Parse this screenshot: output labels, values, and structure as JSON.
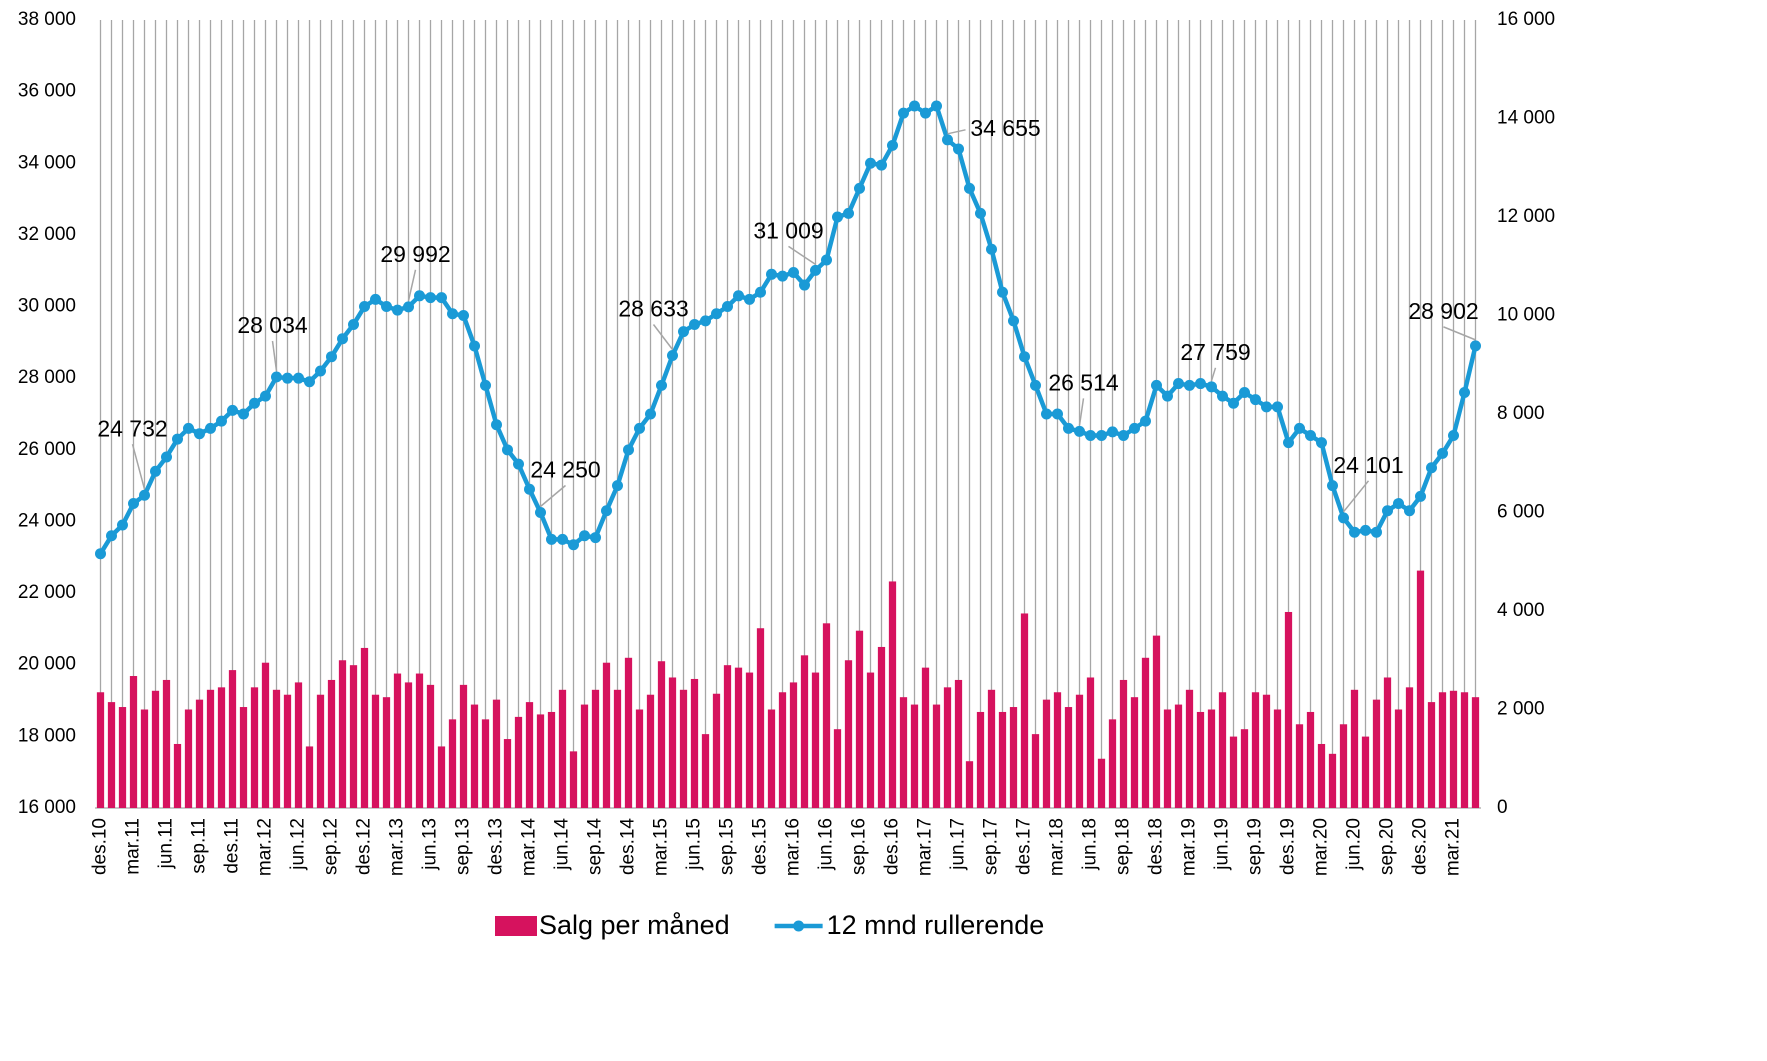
{
  "chart_data": {
    "type": "bar_line",
    "categories": [
      "des.10",
      null,
      null,
      "mar.11",
      null,
      null,
      "jun.11",
      null,
      null,
      "sep.11",
      null,
      null,
      "des.11",
      null,
      null,
      "mar.12",
      null,
      null,
      "jun.12",
      null,
      null,
      "sep.12",
      null,
      null,
      "des.12",
      null,
      null,
      "mar.13",
      null,
      null,
      "jun.13",
      null,
      null,
      "sep.13",
      null,
      null,
      "des.13",
      null,
      null,
      "mar.14",
      null,
      null,
      "jun.14",
      null,
      null,
      "sep.14",
      null,
      null,
      "des.14",
      null,
      null,
      "mar.15",
      null,
      null,
      "jun.15",
      null,
      null,
      "sep.15",
      null,
      null,
      "des.15",
      null,
      null,
      "mar.16",
      null,
      null,
      "jun.16",
      null,
      null,
      "sep.16",
      null,
      null,
      "des.16",
      null,
      null,
      "mar.17",
      null,
      null,
      "jun.17",
      null,
      null,
      "sep.17",
      null,
      null,
      "des.17",
      null,
      null,
      "mar.18",
      null,
      null,
      "jun.18",
      null,
      null,
      "sep.18",
      null,
      null,
      "des.18",
      null,
      null,
      "mar.19",
      null,
      null,
      "jun.19",
      null,
      null,
      "sep.19",
      null,
      null,
      "des.19",
      null,
      null,
      "mar.20",
      null,
      null,
      "jun.20",
      null,
      null,
      "sep.20",
      null,
      null,
      "des.20",
      null,
      null,
      "mar.21",
      null,
      null
    ],
    "series": [
      {
        "name": "Salg per måned",
        "color": "#d6125e",
        "axis": "y2",
        "type": "bar",
        "values": [
          2350,
          2150,
          2050,
          2680,
          2000,
          2380,
          2600,
          1300,
          2000,
          2200,
          2400,
          2450,
          2800,
          2050,
          2450,
          2950,
          2400,
          2300,
          2550,
          1250,
          2300,
          2600,
          3000,
          2900,
          3250,
          2300,
          2250,
          2730,
          2550,
          2730,
          2500,
          1250,
          1800,
          2500,
          2100,
          1800,
          2200,
          1400,
          1850,
          2150,
          1900,
          1950,
          2400,
          1150,
          2100,
          2400,
          2950,
          2400,
          3050,
          2000,
          2300,
          2980,
          2650,
          2400,
          2620,
          1500,
          2320,
          2900,
          2850,
          2750,
          3650,
          2000,
          2350,
          2550,
          3100,
          2750,
          3750,
          1600,
          3000,
          3600,
          2750,
          3270,
          4600,
          2250,
          2100,
          2850,
          2100,
          2450,
          2600,
          950,
          1950,
          2400,
          1950,
          2050,
          3950,
          1500,
          2200,
          2350,
          2050,
          2300,
          2650,
          1000,
          1800,
          2600,
          2250,
          3050,
          3500,
          2000,
          2100,
          2400,
          1950,
          2000,
          2350,
          1450,
          1600,
          2350,
          2300,
          2000,
          3980,
          1700,
          1950,
          1300,
          1100,
          1700,
          2400,
          1450,
          2200,
          2650,
          2000,
          2450,
          4820,
          2150,
          2350,
          2380,
          2350,
          2250
        ]
      },
      {
        "name": "12 mnd rullerende",
        "color": "#1a9ad6",
        "axis": "y",
        "type": "line",
        "values": [
          23100,
          23600,
          23900,
          24500,
          24732,
          25400,
          25800,
          26300,
          26600,
          26450,
          26600,
          26800,
          27100,
          27000,
          27300,
          27500,
          28034,
          28000,
          28000,
          27900,
          28200,
          28600,
          29100,
          29500,
          30000,
          30200,
          30000,
          29900,
          29992,
          30300,
          30250,
          30250,
          29800,
          29750,
          28900,
          27800,
          26700,
          26000,
          25600,
          24900,
          24250,
          23500,
          23500,
          23350,
          23600,
          23550,
          24300,
          25000,
          26000,
          26600,
          27000,
          27800,
          28633,
          29300,
          29500,
          29600,
          29800,
          30000,
          30300,
          30200,
          30400,
          30900,
          30850,
          30950,
          30600,
          31009,
          31300,
          32500,
          32600,
          33300,
          34000,
          33950,
          34500,
          35400,
          35600,
          35400,
          35600,
          34655,
          34400,
          33300,
          32600,
          31600,
          30400,
          29600,
          28600,
          27800,
          27000,
          27000,
          26600,
          26514,
          26400,
          26400,
          26500,
          26400,
          26600,
          26800,
          27800,
          27500,
          27850,
          27800,
          27850,
          27759,
          27500,
          27300,
          27600,
          27400,
          27200,
          27200,
          26200,
          26600,
          26400,
          26200,
          25000,
          24101,
          23700,
          23750,
          23700,
          24300,
          24500,
          24300,
          24700,
          25500,
          25900,
          26400,
          27600,
          28902
        ],
        "value_labels": [
          null,
          null,
          null,
          null,
          "24 732",
          null,
          null,
          null,
          null,
          null,
          null,
          null,
          null,
          null,
          null,
          null,
          "28 034",
          null,
          null,
          null,
          null,
          null,
          null,
          null,
          null,
          null,
          null,
          null,
          "29 992",
          null,
          null,
          null,
          null,
          null,
          null,
          null,
          null,
          null,
          null,
          null,
          "24 250",
          null,
          null,
          null,
          null,
          null,
          null,
          null,
          null,
          null,
          null,
          null,
          "28 633",
          null,
          null,
          null,
          null,
          null,
          null,
          null,
          null,
          null,
          null,
          null,
          null,
          "31 009",
          null,
          null,
          null,
          null,
          null,
          null,
          null,
          null,
          null,
          null,
          null,
          "34 655",
          null,
          null,
          null,
          null,
          null,
          null,
          null,
          null,
          null,
          null,
          null,
          "26 514",
          null,
          null,
          null,
          null,
          null,
          null,
          null,
          null,
          null,
          null,
          null,
          "27 759",
          null,
          null,
          null,
          null,
          null,
          null,
          null,
          null,
          null,
          null,
          null,
          "24 101",
          null,
          null,
          null,
          null,
          null,
          null,
          null,
          null,
          null,
          null,
          null,
          "28 902"
        ]
      }
    ],
    "ylim": [
      16000,
      38000
    ],
    "yticks": [
      {
        "value": 16000,
        "label": "16 000"
      },
      {
        "value": 18000,
        "label": "18 000"
      },
      {
        "value": 20000,
        "label": "20 000"
      },
      {
        "value": 22000,
        "label": "22 000"
      },
      {
        "value": 24000,
        "label": "24 000"
      },
      {
        "value": 26000,
        "label": "26 000"
      },
      {
        "value": 28000,
        "label": "28 000"
      },
      {
        "value": 30000,
        "label": "30 000"
      },
      {
        "value": 32000,
        "label": "32 000"
      },
      {
        "value": 34000,
        "label": "34 000"
      },
      {
        "value": 36000,
        "label": "36 000"
      },
      {
        "value": 38000,
        "label": "38 000"
      }
    ],
    "y2lim": [
      0,
      16000
    ],
    "y2ticks": [
      0,
      {
        "value": 2000,
        "label": "2 000"
      },
      {
        "value": 4000,
        "label": "4 000"
      },
      {
        "value": 6000,
        "label": "6 000"
      },
      {
        "value": 8000,
        "label": "8 000"
      },
      {
        "value": 10000,
        "label": "10 000"
      },
      {
        "value": 12000,
        "label": "12 000"
      },
      {
        "value": 14000,
        "label": "14 000"
      },
      {
        "value": 16000,
        "label": "16 000"
      }
    ],
    "xgrid": true,
    "legend": "bottom"
  }
}
